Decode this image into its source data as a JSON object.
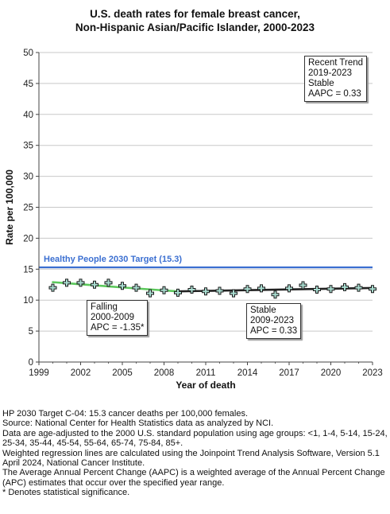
{
  "title_lines": [
    "U.S. death rates for female breast cancer,",
    "Non-Hispanic Asian/Pacific Islander,  2000-2023"
  ],
  "chart_data": {
    "type": "scatter",
    "title": "U.S. death rates for female breast cancer, Non-Hispanic Asian/Pacific Islander, 2000-2023",
    "xlabel": "Year of death",
    "ylabel": "Rate per 100,000",
    "xlim": [
      1999,
      2023
    ],
    "ylim": [
      0,
      50
    ],
    "xticks": [
      1999,
      2002,
      2005,
      2008,
      2011,
      2014,
      2017,
      2020,
      2023
    ],
    "yticks": [
      0,
      5,
      10,
      15,
      20,
      25,
      30,
      35,
      40,
      45,
      50
    ],
    "grid": true,
    "observed": {
      "x": [
        2000,
        2001,
        2002,
        2003,
        2004,
        2005,
        2006,
        2007,
        2008,
        2009,
        2010,
        2011,
        2012,
        2013,
        2014,
        2015,
        2016,
        2017,
        2018,
        2019,
        2020,
        2021,
        2022,
        2023
      ],
      "y": [
        12.0,
        12.8,
        12.8,
        12.5,
        12.8,
        12.3,
        12.0,
        11.1,
        11.6,
        11.2,
        11.7,
        11.4,
        11.5,
        11.1,
        11.8,
        11.9,
        10.9,
        11.9,
        12.4,
        11.7,
        11.8,
        12.1,
        12.0,
        11.8
      ]
    },
    "trend_segments": [
      {
        "label": "Falling",
        "period": "2000-2009",
        "apc_text": "APC = -1.35*",
        "color": "#5cc85c",
        "x": [
          2000,
          2001,
          2002,
          2003,
          2004,
          2005,
          2006,
          2007,
          2008,
          2009
        ],
        "y": [
          12.9,
          12.73,
          12.56,
          12.39,
          12.22,
          12.05,
          11.89,
          11.73,
          11.57,
          11.42
        ]
      },
      {
        "label": "Stable",
        "period": "2009-2023",
        "apc_text": "APC =  0.33",
        "color": "#222222",
        "x": [
          2009,
          2023
        ],
        "y": [
          11.42,
          11.96
        ]
      }
    ],
    "reference_line": {
      "label": "Healthy People 2030 Target (15.3)",
      "value": 15.3,
      "color": "#3b6fd1"
    },
    "recent_trend_box": [
      "Recent Trend",
      "2019-2023",
      "Stable",
      "AAPC =  0.33"
    ],
    "segment_boxes": [
      [
        "Falling",
        "2000-2009",
        "APC = -1.35*"
      ],
      [
        "Stable",
        "2009-2023",
        "APC =  0.33"
      ]
    ]
  },
  "footnotes": [
    "HP 2030 Target C-04: 15.3 cancer deaths per 100,000 females.",
    "Source: National Center for Health Statistics data as analyzed by NCI.",
    "Data are age-adjusted to the 2000 U.S. standard population using age groups: <1, 1-4, 5-14, 15-24, 25-34, 35-44, 45-54, 55-64, 65-74, 75-84, 85+.",
    "Weighted regression lines are calculated using the Joinpoint Trend Analysis Software, Version 5.1 April 2024, National Cancer Institute.",
    "The Average Annual Percent Change (AAPC) is a weighted average of the Annual Percent Change (APC) estimates that occur over the specified year range.",
    "* Denotes statistical significance."
  ]
}
